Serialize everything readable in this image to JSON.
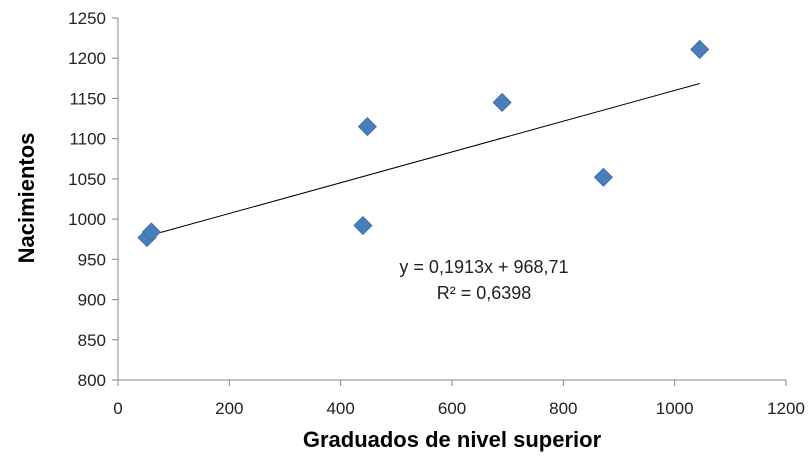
{
  "chart_data": {
    "type": "scatter",
    "title": "",
    "xlabel": "Graduados de nivel superior",
    "ylabel": "Nacimientos",
    "xlim": [
      0,
      1200
    ],
    "ylim": [
      800,
      1250
    ],
    "x_ticks": [
      0,
      200,
      400,
      600,
      800,
      1000,
      1200
    ],
    "y_ticks": [
      800,
      850,
      900,
      950,
      1000,
      1050,
      1100,
      1150,
      1200,
      1250
    ],
    "grid": false,
    "marker": "diamond",
    "series": [
      {
        "points": [
          {
            "x": 52,
            "y": 977
          },
          {
            "x": 60,
            "y": 984
          },
          {
            "x": 440,
            "y": 992
          },
          {
            "x": 448,
            "y": 1115
          },
          {
            "x": 690,
            "y": 1145
          },
          {
            "x": 872,
            "y": 1052
          },
          {
            "x": 1045,
            "y": 1211
          }
        ]
      }
    ],
    "trendline": {
      "type": "linear",
      "slope": 0.1913,
      "intercept": 968.71,
      "x_start": 52,
      "x_end": 1045
    },
    "annotations": {
      "equation": "y = 0,1913x + 968,71",
      "r_squared": "R² = 0,6398"
    },
    "colors": {
      "marker": "#4a7ebb",
      "trendline": "#000000",
      "axis": "#888888"
    }
  }
}
